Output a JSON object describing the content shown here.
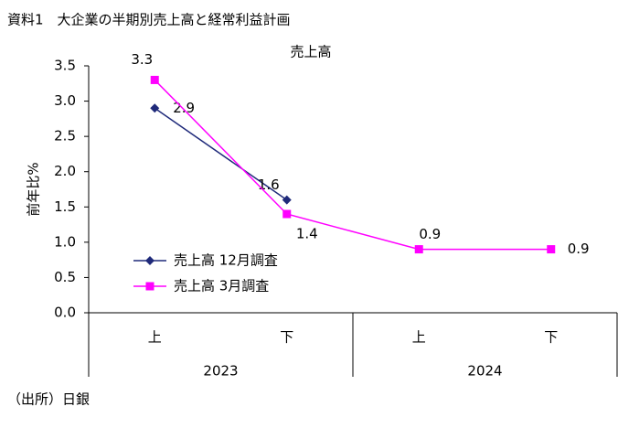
{
  "chart_data": {
    "type": "line",
    "title": "資料1　大企業の半期別売上高と経常利益計画",
    "subtitle": "売上高",
    "y_label": "前年比%",
    "source": "（出所）日銀",
    "categories": [
      "上",
      "下",
      "上",
      "下"
    ],
    "year_groups": [
      "2023",
      "2024"
    ],
    "series": [
      {
        "name": "売上高 12月調査",
        "color": "#1f2a7a",
        "marker": "diamond",
        "values": [
          2.9,
          1.6,
          null,
          null
        ]
      },
      {
        "name": "売上高 3月調査",
        "color": "#ff00ff",
        "marker": "square",
        "values": [
          3.3,
          1.4,
          0.9,
          0.9
        ]
      }
    ],
    "ylim": [
      0,
      3.5
    ],
    "yticks": [
      {
        "value": 0,
        "label": "0.0"
      },
      0.5,
      {
        "value": 1,
        "label": "1.0"
      },
      1.5,
      {
        "value": 2,
        "label": "2.0"
      },
      2.5,
      {
        "value": 3,
        "label": "3.0"
      },
      3.5
    ],
    "grid": false,
    "legend": "center-left"
  }
}
